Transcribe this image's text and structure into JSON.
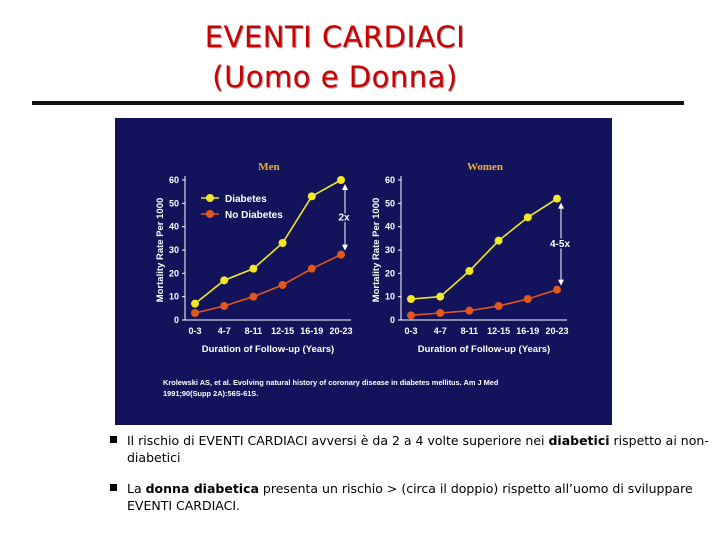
{
  "title_line1": "EVENTI CARDIACI",
  "title_line2": "(Uomo e Donna)",
  "colors": {
    "title": "#cc0000",
    "panel_bg": "#12135a",
    "diabetes": "#f2e826",
    "no_diabetes": "#e2571c",
    "text_on_panel": "#ffffff",
    "panel_title": "#f0b030"
  },
  "chart_data": [
    {
      "type": "line",
      "title": "Men",
      "xlabel": "Duration of Follow-up (Years)",
      "ylabel": "Mortality Rate Per 1000",
      "categories": [
        "0-3",
        "4-7",
        "8-11",
        "12-15",
        "16-19",
        "20-23"
      ],
      "yticks": [
        0,
        10,
        20,
        30,
        40,
        50,
        60
      ],
      "ylim": [
        0,
        60
      ],
      "legend": [
        "Diabetes",
        "No Diabetes"
      ],
      "annotation": "2x",
      "series": [
        {
          "name": "Diabetes",
          "values": [
            7,
            17,
            22,
            33,
            53,
            60
          ]
        },
        {
          "name": "No Diabetes",
          "values": [
            3,
            6,
            10,
            15,
            22,
            28
          ]
        }
      ]
    },
    {
      "type": "line",
      "title": "Women",
      "xlabel": "Duration of Follow-up (Years)",
      "ylabel": "Mortality Rate Per 1000",
      "categories": [
        "0-3",
        "4-7",
        "8-11",
        "12-15",
        "16-19",
        "20-23"
      ],
      "yticks": [
        0,
        10,
        20,
        30,
        40,
        50,
        60
      ],
      "ylim": [
        0,
        60
      ],
      "annotation": "4-5x",
      "series": [
        {
          "name": "Diabetes",
          "values": [
            9,
            10,
            21,
            34,
            44,
            52
          ]
        },
        {
          "name": "No Diabetes",
          "values": [
            2,
            3,
            4,
            6,
            9,
            13
          ]
        }
      ]
    }
  ],
  "citation_line1": "Krolewski AS, et al. Evolving natural history of coronary disease in diabetes mellitus. Am J Med",
  "citation_line2": "1991;90(Supp 2A):56S-61S.",
  "bullets": [
    {
      "pre": "Il rischio di EVENTI CARDIACI avversi è da 2 a 4 volte superiore nei ",
      "bold": "diabetici",
      "post": " rispetto ai non-diabetici"
    },
    {
      "pre": "La ",
      "bold": "donna diabetica",
      "post": " presenta un rischio > (circa il doppio) rispetto all’uomo di sviluppare EVENTI CARDIACI."
    }
  ]
}
